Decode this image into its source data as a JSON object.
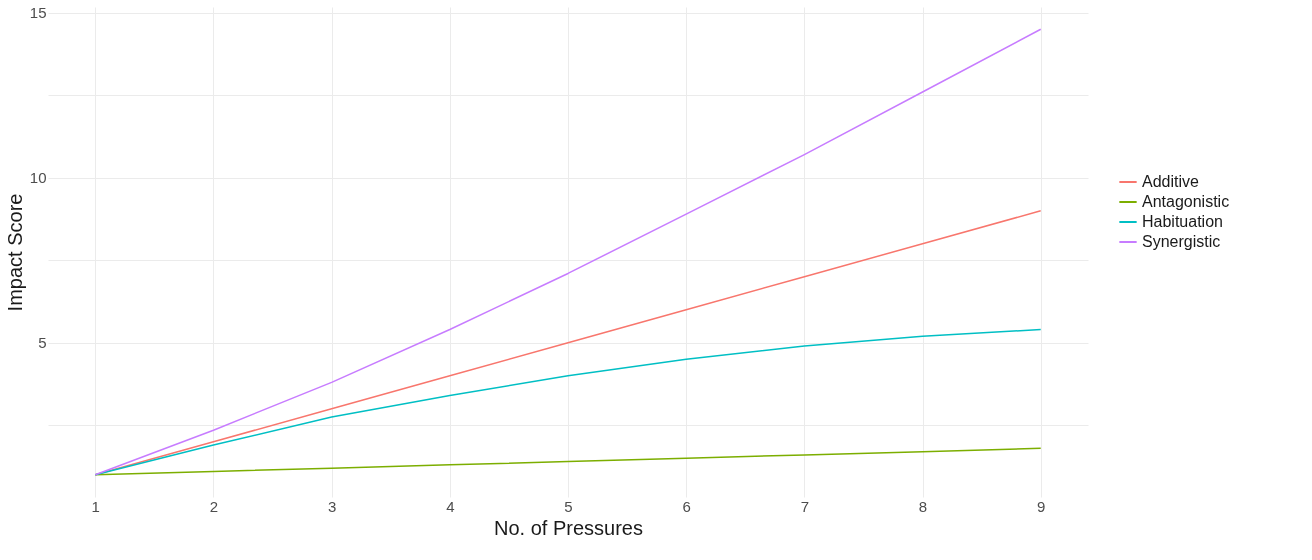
{
  "chart_data": {
    "type": "line",
    "xlabel": "No. of Pressures",
    "ylabel": "Impact Score",
    "x": [
      1,
      2,
      3,
      4,
      5,
      6,
      7,
      8,
      9
    ],
    "series": [
      {
        "name": "Additive",
        "color": "#f8766d",
        "values": [
          1,
          2,
          3,
          4,
          5,
          6,
          7,
          8,
          9
        ]
      },
      {
        "name": "Antagonistic",
        "color": "#7cae00",
        "values": [
          1,
          1.1,
          1.2,
          1.3,
          1.4,
          1.5,
          1.6,
          1.7,
          1.8
        ]
      },
      {
        "name": "Habituation",
        "color": "#00bfc4",
        "values": [
          1,
          1.9,
          2.75,
          3.4,
          4.0,
          4.5,
          4.9,
          5.2,
          5.4
        ]
      },
      {
        "name": "Synergistic",
        "color": "#c77cff",
        "values": [
          1,
          2.35,
          3.8,
          5.4,
          7.1,
          8.9,
          10.7,
          12.6,
          14.5
        ]
      }
    ],
    "xlim": [
      0.6,
      9.4
    ],
    "xticks": [
      1,
      2,
      3,
      4,
      5,
      6,
      7,
      8,
      9
    ],
    "ylim": [
      0.325,
      15.175
    ],
    "yticks": [
      {
        "value": 2.5,
        "label": null
      },
      5,
      {
        "value": 7.5,
        "label": null
      },
      10,
      {
        "value": 12.5,
        "label": null
      },
      15
    ],
    "grid": true,
    "legend": "right",
    "marker": "none",
    "line_style": "solid"
  }
}
